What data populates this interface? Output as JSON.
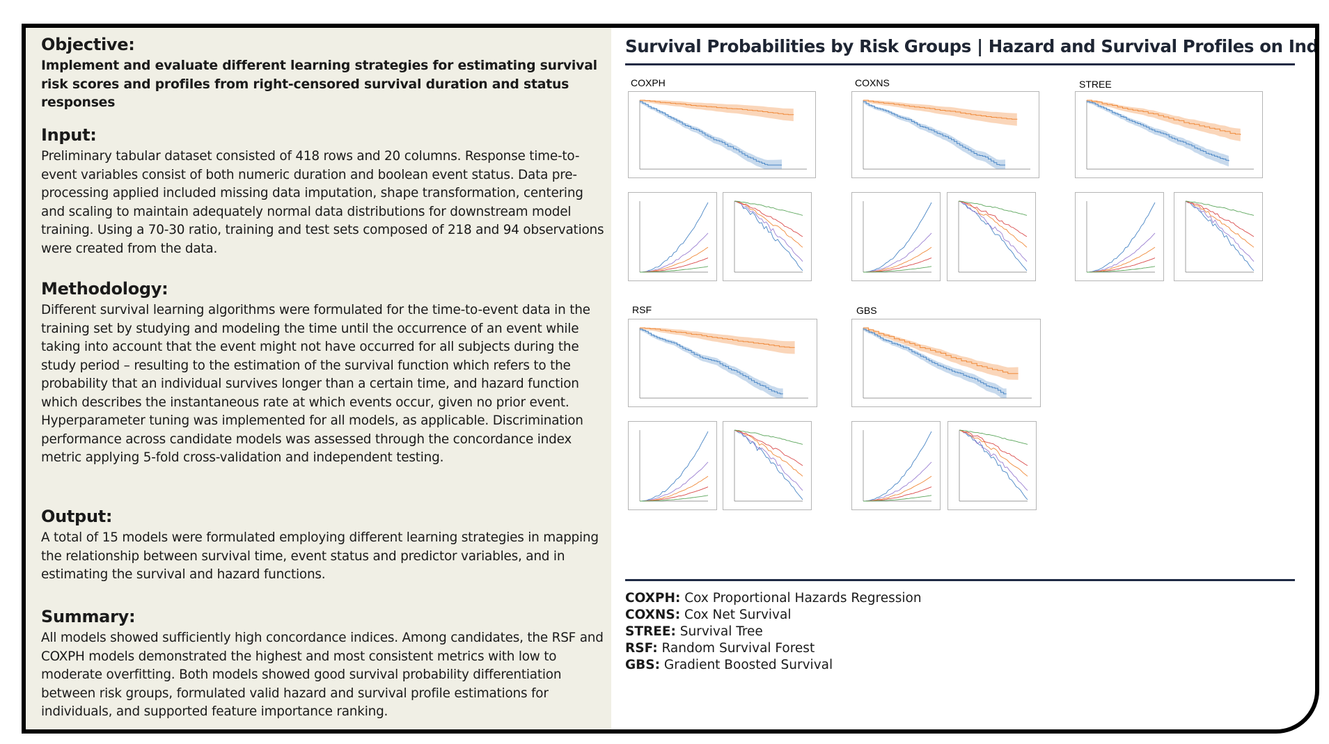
{
  "sections": {
    "objective": {
      "heading": "Objective:",
      "text": "Implement and evaluate different learning strategies for estimating survival risk scores and profiles from right-censored survival duration and status responses"
    },
    "input": {
      "heading": "Input:",
      "text": "Preliminary tabular dataset consisted of 418 rows and 20 columns. Response time-to-event variables consist of both numeric duration and boolean event status. Data pre-processing applied included missing data imputation, shape transformation, centering and scaling to maintain adequately normal data distributions for downstream model training. Using a 70-30 ratio, training and test sets composed of 218  and 94 observations were created from the data."
    },
    "methodology": {
      "heading": "Methodology:",
      "text": "Different survival learning algorithms were formulated for the time-to-event data in the training set by studying and modeling the time until the occurrence of an event while taking into account that the event might not have occurred for all subjects during the study period – resulting to the estimation of the survival function which refers to the probability that an individual survives longer than a certain time, and hazard function which describes the instantaneous rate at which events occur, given no prior event. Hyperparameter tuning was implemented for all models, as applicable. Discrimination performance across candidate models was assessed through the concordance index metric applying 5-fold cross-validation and independent testing."
    },
    "output": {
      "heading": "Output:",
      "text": "A total of 15 models were formulated employing different learning strategies in mapping the relationship between survival time, event status and predictor variables, and in estimating the survival and hazard functions."
    },
    "summary": {
      "heading": "Summary:",
      "text": "All models showed sufficiently high concordance indices. Among candidates, the RSF and COXPH models demonstrated the highest and most consistent metrics with low to moderate overfitting. Both models showed good survival probability differentiation between risk groups, formulated valid hazard and survival profile estimations for individuals, and supported feature importance ranking."
    }
  },
  "panel": {
    "title": "Survival Probabilities by Risk Groups | Hazard and Survival Profiles on Individuals"
  },
  "models": [
    {
      "label": "COXPH"
    },
    {
      "label": "COXNS"
    },
    {
      "label": "STREE"
    },
    {
      "label": "RSF"
    },
    {
      "label": "GBS"
    }
  ],
  "legend": [
    {
      "abbr": "COXPH:",
      "name": "Cox Proportional Hazards Regression"
    },
    {
      "abbr": "COXNS:",
      "name": "Cox Net Survival"
    },
    {
      "abbr": "STREE:",
      "name": "Survival Tree"
    },
    {
      "abbr": "RSF:",
      "name": "Random Survival Forest"
    },
    {
      "abbr": "GBS:",
      "name": "Gradient Boosted Survival"
    }
  ],
  "colors": {
    "panel_bg": "#f0efe5",
    "rule": "#1e2a44",
    "high_risk": "#4a86c5",
    "low_risk": "#f08a3a",
    "cases": [
      "#4a86c5",
      "#9b7fd1",
      "#f08a3a",
      "#d94a4a",
      "#5aa55a"
    ]
  }
}
